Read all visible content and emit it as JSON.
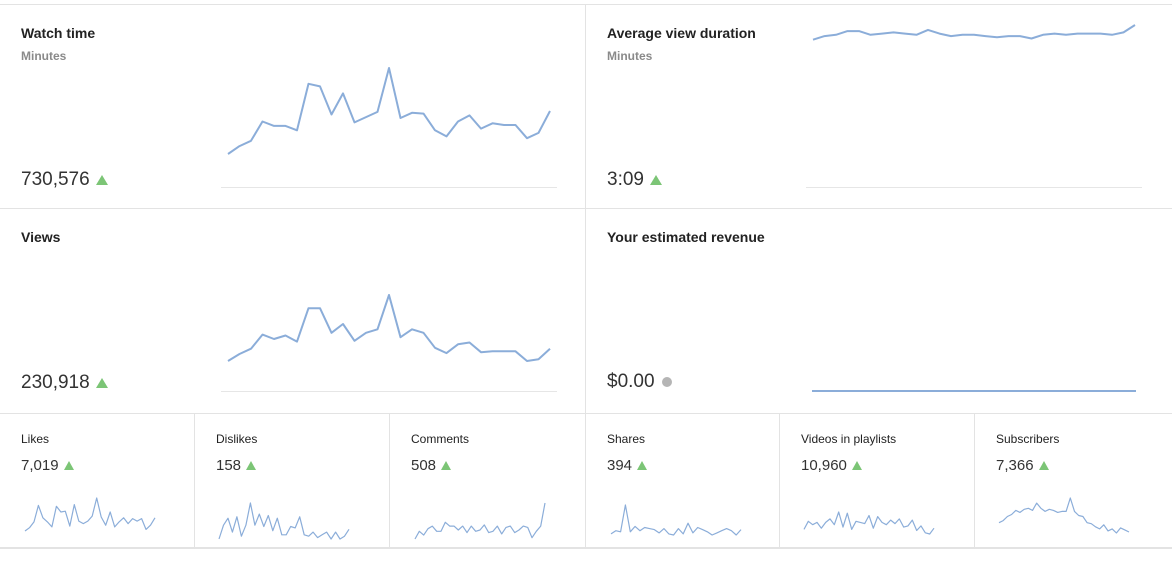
{
  "cards": {
    "watch_time": {
      "title": "Watch time",
      "subtitle": "Minutes",
      "value": "730,576",
      "trend": "up",
      "series": [
        10,
        19,
        25,
        47,
        42,
        42,
        37,
        90,
        87,
        55,
        79,
        46,
        52,
        58,
        108,
        51,
        57,
        56,
        37,
        30,
        47,
        54,
        39,
        45,
        43,
        43,
        28,
        34,
        59
      ]
    },
    "avg_view_duration": {
      "title": "Average view duration",
      "subtitle": "Minutes",
      "value": "3:09",
      "trend": "up",
      "series": [
        58,
        61,
        62,
        65,
        65,
        62,
        63,
        64,
        63,
        62,
        66,
        63,
        61,
        62,
        62,
        61,
        60,
        61,
        61,
        59,
        62,
        63,
        62,
        63,
        63,
        63,
        62,
        64,
        70
      ]
    },
    "views": {
      "title": "Views",
      "value": "230,918",
      "trend": "up",
      "series": [
        10,
        18,
        24,
        40,
        35,
        39,
        32,
        70,
        70,
        42,
        52,
        33,
        42,
        46,
        85,
        37,
        46,
        42,
        25,
        19,
        29,
        31,
        20,
        21,
        21,
        21,
        10,
        12,
        24
      ]
    },
    "revenue": {
      "title": "Your estimated revenue",
      "value": "$0.00",
      "trend": "flat",
      "series": [
        0,
        0,
        0,
        0,
        0,
        0,
        0,
        0,
        0,
        0,
        0,
        0,
        0,
        0,
        0,
        0,
        0,
        0,
        0,
        0,
        0,
        0,
        0,
        0,
        0,
        0,
        0,
        0,
        0
      ]
    },
    "likes": {
      "title": "Likes",
      "value": "7,019",
      "trend": "up",
      "series": [
        3,
        7,
        14,
        34,
        19,
        14,
        8,
        33,
        26,
        27,
        9,
        35,
        15,
        12,
        15,
        21,
        43,
        20,
        10,
        26,
        8,
        14,
        19,
        12,
        18,
        15,
        18,
        5,
        10,
        19
      ]
    },
    "dislikes": {
      "title": "Dislikes",
      "value": "158",
      "trend": "up",
      "series": [
        1,
        11,
        16,
        6,
        17,
        3,
        11,
        27,
        11,
        19,
        10,
        18,
        7,
        16,
        4,
        4,
        10,
        9,
        17,
        4,
        3,
        6,
        2,
        4,
        6,
        1,
        6,
        1,
        3,
        8
      ]
    },
    "comments": {
      "title": "Comments",
      "value": "508",
      "trend": "up",
      "series": [
        2,
        8,
        5,
        10,
        12,
        8,
        8,
        15,
        12,
        12,
        9,
        12,
        7,
        12,
        8,
        9,
        13,
        7,
        8,
        12,
        6,
        11,
        12,
        7,
        9,
        12,
        11,
        3,
        8,
        12,
        30
      ]
    },
    "shares": {
      "title": "Shares",
      "value": "394",
      "trend": "up",
      "series": [
        4,
        7,
        6,
        31,
        6,
        11,
        7,
        10,
        9,
        8,
        5,
        9,
        4,
        3,
        9,
        4,
        14,
        5,
        10,
        8,
        6,
        3,
        5,
        7,
        9,
        7,
        3,
        8
      ]
    },
    "playlists": {
      "title": "Videos in playlists",
      "value": "10,960",
      "trend": "up",
      "series": [
        8,
        15,
        12,
        14,
        9,
        14,
        17,
        12,
        23,
        10,
        22,
        8,
        15,
        14,
        13,
        20,
        9,
        19,
        14,
        12,
        16,
        13,
        17,
        10,
        11,
        16,
        7,
        11,
        5,
        4,
        9
      ]
    },
    "subscribers": {
      "title": "Subscribers",
      "value": "7,366",
      "trend": "up",
      "series": [
        14,
        16,
        20,
        22,
        26,
        24,
        27,
        28,
        26,
        33,
        28,
        25,
        27,
        26,
        24,
        25,
        25,
        38,
        25,
        21,
        20,
        14,
        13,
        10,
        8,
        12,
        6,
        8,
        4,
        9,
        7,
        5
      ]
    }
  }
}
